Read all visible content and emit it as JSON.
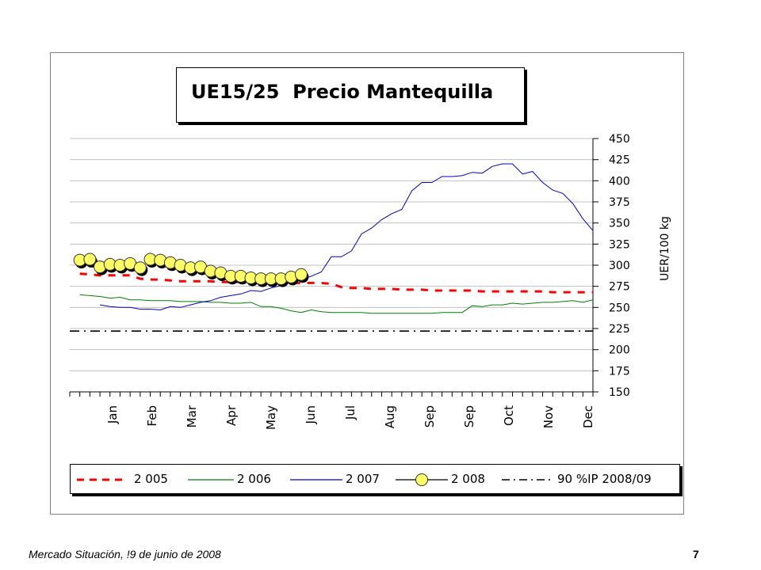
{
  "chart_data": {
    "type": "line",
    "title": "UE15/25  Precio Mantequilla",
    "ylabel": "UER/100 kg",
    "xlabel": "",
    "ylim": [
      150,
      450
    ],
    "yticks": [
      150,
      175,
      200,
      225,
      250,
      275,
      300,
      325,
      350,
      375,
      400,
      425,
      450
    ],
    "y_axis_side": "right",
    "grid": "horizontal",
    "legend_position": "bottom",
    "month_labels": [
      "Jan",
      "Feb",
      "Mar",
      "Apr",
      "May",
      "Jun",
      "Jul",
      "Aug",
      "Sep",
      "Sep",
      "Oct",
      "Nov",
      "Dec"
    ],
    "series": [
      {
        "name": "2 005",
        "style": "dashed",
        "color": "#ff0000",
        "x": [
          1,
          2,
          3,
          4,
          5,
          6,
          7,
          8,
          9,
          10,
          11,
          12,
          13,
          14,
          15,
          16,
          17,
          18,
          19,
          20,
          21,
          22,
          23,
          24,
          25,
          26,
          27,
          28,
          29,
          30,
          31,
          32,
          33,
          34,
          35,
          36,
          37,
          38,
          39,
          40,
          41,
          42,
          43,
          44,
          45,
          46,
          47,
          48,
          49,
          50,
          51,
          52
        ],
        "values": [
          290,
          289,
          288,
          288,
          288,
          288,
          284,
          283,
          283,
          282,
          281,
          281,
          281,
          281,
          280,
          280,
          280,
          279,
          279,
          279,
          279,
          279,
          279,
          279,
          279,
          278,
          274,
          273,
          273,
          272,
          272,
          272,
          271,
          271,
          271,
          270,
          270,
          270,
          270,
          270,
          269,
          269,
          269,
          269,
          269,
          269,
          269,
          268,
          268,
          268,
          268,
          268
        ]
      },
      {
        "name": "2 006",
        "style": "solid",
        "color": "#008000",
        "x": [
          1,
          2,
          3,
          4,
          5,
          6,
          7,
          8,
          9,
          10,
          11,
          12,
          13,
          14,
          15,
          16,
          17,
          18,
          19,
          20,
          21,
          22,
          23,
          24,
          25,
          26,
          27,
          28,
          29,
          30,
          31,
          32,
          33,
          34,
          35,
          36,
          37,
          38,
          39,
          40,
          41,
          42,
          43,
          44,
          45,
          46,
          47,
          48,
          49,
          50,
          51,
          52
        ],
        "values": [
          265,
          264,
          263,
          261,
          262,
          259,
          259,
          258,
          258,
          258,
          257,
          257,
          257,
          256,
          256,
          255,
          255,
          256,
          251,
          251,
          249,
          246,
          244,
          247,
          245,
          244,
          244,
          244,
          244,
          243,
          243,
          243,
          243,
          243,
          243,
          243,
          244,
          244,
          244,
          252,
          251,
          253,
          253,
          255,
          254,
          255,
          256,
          256,
          257,
          258,
          256,
          259
        ]
      },
      {
        "name": "2 007",
        "style": "solid",
        "color": "#0000cc",
        "x": [
          3,
          4,
          5,
          6,
          7,
          8,
          9,
          10,
          11,
          12,
          13,
          14,
          15,
          16,
          17,
          18,
          19,
          20,
          21,
          22,
          23,
          24,
          25,
          26,
          27,
          28,
          29,
          30,
          31,
          32,
          33,
          34,
          35,
          36,
          37,
          38,
          39,
          40,
          41,
          42,
          43,
          44,
          45,
          46,
          47,
          48,
          49,
          50,
          51,
          52
        ],
        "values": [
          253,
          251,
          250,
          250,
          248,
          248,
          247,
          251,
          250,
          253,
          256,
          258,
          262,
          264,
          266,
          270,
          269,
          273,
          276,
          280,
          283,
          287,
          292,
          310,
          310,
          317,
          337,
          344,
          354,
          361,
          366,
          388,
          398,
          398,
          405,
          405,
          406,
          410,
          409,
          417,
          420,
          420,
          408,
          411,
          398,
          389,
          385,
          373,
          355,
          341
        ]
      },
      {
        "name": "2 008",
        "style": "marker",
        "color": "#ffff66",
        "x": [
          1,
          2,
          3,
          4,
          5,
          6,
          7,
          8,
          9,
          10,
          11,
          12,
          13,
          14,
          15,
          16,
          17,
          18,
          19,
          20,
          21,
          22,
          23
        ],
        "values": [
          306,
          307,
          298,
          301,
          300,
          302,
          297,
          307,
          306,
          303,
          300,
          297,
          298,
          293,
          291,
          287,
          287,
          285,
          284,
          284,
          284,
          286,
          289
        ]
      },
      {
        "name": "90 %IP 2008/09",
        "style": "dash-dot",
        "color": "#000000",
        "x": [
          0,
          52
        ],
        "values": [
          222,
          222
        ]
      }
    ]
  },
  "footer": {
    "left": "Mercado Situación, !9 de junio de 2008",
    "right": "7"
  }
}
